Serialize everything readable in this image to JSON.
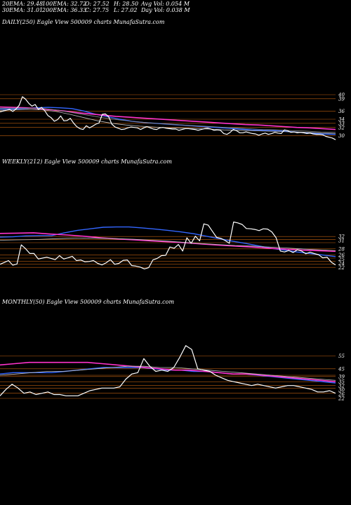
{
  "stats": {
    "ema20": "20EMA: 29.48",
    "ema100": "100EMA: 32.72",
    "open": "O: 27.52",
    "high": "H: 28.50",
    "avg_vol": "Avg Vol: 0.054  M",
    "ema30": "30EMA: 31.01",
    "ema200": "200EMA: 36.33",
    "close": "C: 27.75",
    "low": "L: 27.02",
    "day_vol": "Day Vol: 0.038 M"
  },
  "panels": {
    "daily": "DAILY(250) Eagle  View  500009 charts MunafaSutra.com",
    "weekly": "WEEKLY(212) Eagle  View  500009 charts MunafaSutra.com",
    "monthly": "MONTHLY(50) Eagle  View  500009 charts MunafaSutra.com"
  },
  "colors": {
    "background": "#000000",
    "price": "#ffffff",
    "ema_pink": "#ff33cc",
    "ema_blue": "#3366ff",
    "ema_slow": "#c0c0c0",
    "level_lines": "#c06010"
  },
  "chart_data": [
    {
      "type": "line",
      "name": "daily",
      "ylim": [
        28,
        46
      ],
      "levels": [
        39,
        36,
        32,
        40,
        34,
        33,
        30
      ],
      "level_labels": [
        "39",
        "36",
        "32",
        "40",
        "34",
        "33",
        "30"
      ],
      "series": [
        {
          "name": "price",
          "values": [
            35.8,
            36,
            36.2,
            36.4,
            35.9,
            36.5,
            37.4,
            39.5,
            38.9,
            37.9,
            37.2,
            37.6,
            36.4,
            36.9,
            36.1,
            34.9,
            34.4,
            33.5,
            33.9,
            34.8,
            33.6,
            33.7,
            34.2,
            33.1,
            32.2,
            31.7,
            31.5,
            32.4,
            31.9,
            32.3,
            32.8,
            33.1,
            35.2,
            35.3,
            34.6,
            32.8,
            32.1,
            31.8,
            31.5,
            31.6,
            31.9,
            32.1,
            32,
            31.9,
            31.5,
            31.9,
            32.2,
            31.9,
            31.6,
            31.5,
            31.9,
            32,
            31.8,
            31.7,
            31.6,
            31.6,
            31.3,
            31.5,
            31.7,
            31.7,
            31.6,
            31.5,
            31.3,
            31.5,
            31.7,
            31.8,
            31.6,
            31.3,
            31.4,
            31.3,
            30.5,
            30.3,
            30.8,
            31.5,
            31.2,
            30.7,
            30.7,
            30.9,
            30.7,
            30.5,
            30.4,
            30.1,
            30.4,
            30.6,
            30.3,
            30.5,
            30.8,
            30.6,
            30.5,
            31.4,
            31.2,
            30.8,
            30.9,
            30.7,
            30.8,
            30.7,
            30.5,
            30.6,
            30.4,
            30.3,
            30.3,
            30.2,
            29.8,
            29.6,
            29.4,
            29
          ]
        },
        {
          "name": "ema_fast_blue",
          "values": [
            36.5,
            36.5,
            36.6,
            36.8,
            36.9,
            36.8,
            36.6,
            36,
            35.2,
            34.6,
            34,
            33.5,
            33.2,
            33,
            32.8,
            32.6,
            32.4,
            32.2,
            32,
            31.8,
            31.6,
            31.4,
            31.3,
            31.2,
            31,
            30.8,
            30.6,
            30.4,
            30.3
          ]
        },
        {
          "name": "ema_pink",
          "values": [
            37,
            36.9,
            36.8,
            36.6,
            36.3,
            36,
            35.6,
            35.3,
            35,
            34.7,
            34.5,
            34.3,
            34.1,
            33.9,
            33.7,
            33.5,
            33.3,
            33.1,
            32.9,
            32.7,
            32.6,
            32.4,
            32.2,
            32,
            31.9,
            31.7,
            31.5
          ]
        },
        {
          "name": "ema_slow_a",
          "values": [
            36.2,
            36.3,
            36.4,
            36.3,
            35.9,
            35.2,
            34.4,
            33.6,
            33,
            32.6,
            32.3,
            32.1,
            31.9,
            31.8,
            31.7,
            31.6,
            31.4,
            31.3,
            31.2,
            31.1,
            31,
            30.9,
            30.8,
            30.6,
            30.5
          ]
        },
        {
          "name": "ema_slow_b",
          "values": [
            36.7,
            36.7,
            36.7,
            36.6,
            36.2,
            35.6,
            35,
            34.4,
            33.9,
            33.5,
            33.2,
            32.9,
            32.7,
            32.5,
            32.3,
            32.1,
            31.9,
            31.7,
            31.5,
            31.4,
            31.2,
            31.1,
            30.9,
            30.8
          ]
        }
      ]
    },
    {
      "type": "line",
      "name": "weekly",
      "ylim": [
        20,
        45
      ],
      "levels": [
        32,
        31,
        28,
        26,
        25,
        24,
        22,
        23,
        30
      ],
      "level_labels": [
        "32",
        "31",
        "28",
        "26",
        "25",
        "24",
        "22"
      ],
      "series": [
        {
          "name": "price",
          "values": [
            23,
            23.6,
            24.2,
            22.7,
            23.1,
            29.3,
            28.1,
            26.5,
            26.5,
            24.7,
            25,
            25.3,
            24.9,
            24.5,
            25.8,
            24.7,
            25.1,
            25.6,
            24.2,
            24.4,
            23.8,
            23.9,
            24.2,
            23.3,
            22.8,
            23.5,
            24.5,
            23,
            23.3,
            24.3,
            24.4,
            22.6,
            22.4,
            22.1,
            21.5,
            21.9,
            24.4,
            24.9,
            25.8,
            25.9,
            28.6,
            28.2,
            29.4,
            27.3,
            31.6,
            29.8,
            32.1,
            30.6,
            36.1,
            35.7,
            33.7,
            31.7,
            31.4,
            30.7,
            29.8,
            36.7,
            36.4,
            35.9,
            34.6,
            34.5,
            34.3,
            33.9,
            34.5,
            34.4,
            33.5,
            31.6,
            27.3,
            27,
            27.5,
            26.8,
            27.7,
            27.3,
            26.4,
            26.9,
            26.5,
            26.1,
            25.1,
            25.3,
            23.7,
            22.8
          ]
        },
        {
          "name": "ema_fast_blue",
          "values": [
            31.8,
            31.9,
            32.2,
            32.3,
            32.3,
            33.2,
            34,
            34.5,
            35,
            35.1,
            35.1,
            34.8,
            34.4,
            34,
            33.5,
            32.9,
            32.1,
            31.3,
            30.5,
            29.8,
            29,
            28.2,
            27.6,
            27,
            26.5,
            26,
            25.5
          ]
        },
        {
          "name": "ema_pink",
          "values": [
            33,
            33.1,
            33.2,
            32.8,
            32.5,
            32.1,
            31.6,
            31.2,
            30.9,
            30.6,
            30.3,
            30,
            29.6,
            29.2,
            28.9,
            28.6,
            28.2,
            27.9,
            27.6,
            27.4,
            27.2
          ]
        },
        {
          "name": "ema_slow",
          "values": [
            30.8,
            30.9,
            31,
            31.2,
            31.4,
            31.5,
            31.4,
            31.3,
            31.1,
            30.8,
            30.5,
            30.1,
            29.7,
            29.4,
            29.1,
            28.9,
            28.6,
            28.3,
            28,
            27.7,
            27.4
          ]
        }
      ]
    },
    {
      "type": "line",
      "name": "monthly",
      "ylim": [
        10,
        70
      ],
      "levels": [
        55,
        45,
        39,
        35,
        32,
        30,
        26,
        22,
        40
      ],
      "level_labels": [
        "55",
        "45",
        "39",
        "35",
        "32",
        "30",
        "26",
        "22"
      ],
      "series": [
        {
          "name": "price",
          "values": [
            24,
            29,
            33,
            30,
            26,
            27,
            25,
            26,
            27,
            25,
            25,
            24,
            24,
            24,
            26,
            28,
            29,
            30,
            30,
            30,
            31,
            37,
            41,
            42,
            53,
            47,
            43,
            44,
            43,
            46,
            54,
            63,
            60,
            45,
            44,
            43,
            40,
            38,
            36,
            35,
            34,
            33,
            32,
            33,
            32,
            31,
            30,
            31,
            32,
            32,
            31,
            30,
            29,
            27,
            27,
            28,
            26
          ]
        },
        {
          "name": "ema_fast_blue",
          "values": [
            41,
            42,
            42,
            42,
            42,
            43,
            44,
            45,
            46,
            46,
            46,
            46,
            45,
            44,
            44,
            43,
            43,
            42,
            41,
            41,
            40,
            39,
            38,
            37,
            36,
            35,
            34
          ]
        },
        {
          "name": "ema_pink",
          "values": [
            48,
            49,
            50,
            50,
            50,
            50,
            50,
            49,
            48,
            47,
            46,
            45,
            44,
            44,
            43,
            42,
            41,
            41,
            40,
            39,
            38,
            37,
            36,
            35
          ]
        },
        {
          "name": "ema_slow",
          "values": [
            40,
            41,
            42,
            43,
            43,
            44,
            45,
            46,
            47,
            47,
            46,
            46,
            45,
            44,
            43,
            42,
            41,
            40,
            39,
            38,
            37,
            36
          ]
        }
      ]
    }
  ]
}
